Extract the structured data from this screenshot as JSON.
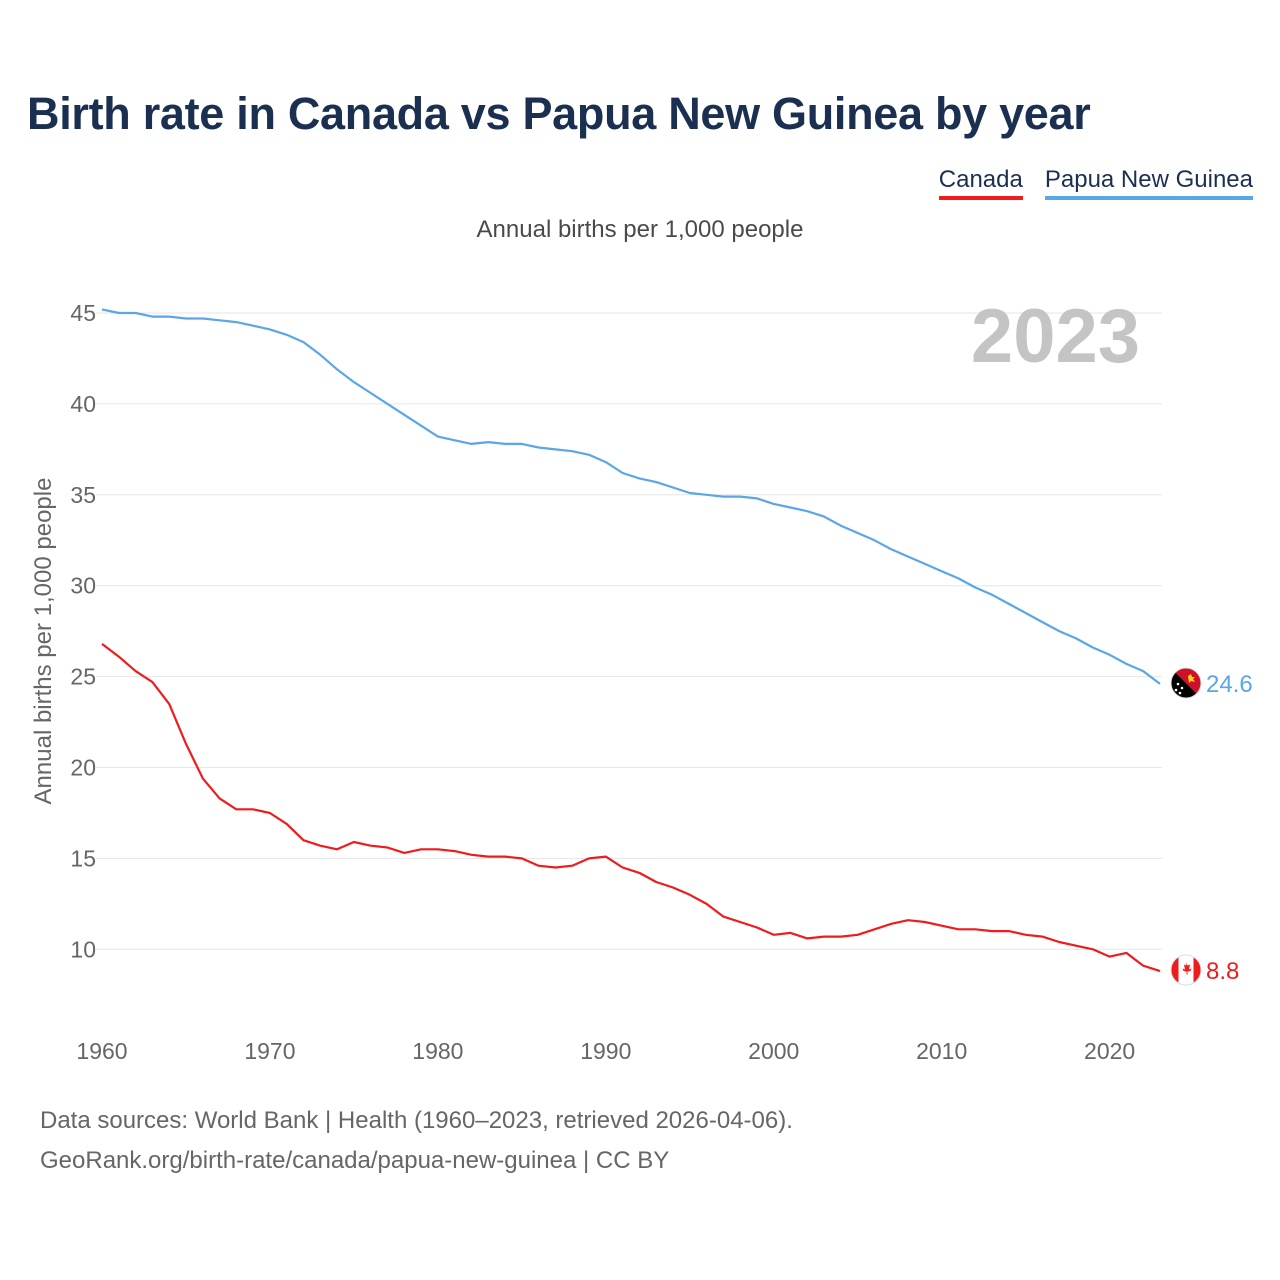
{
  "title": "Birth rate in Canada vs Papua New Guinea by year",
  "subtitle": "Annual births per 1,000 people",
  "legend": [
    {
      "label": "Canada",
      "color": "#ee1c1c"
    },
    {
      "label": "Papua New Guinea",
      "color": "#5aa6e6"
    }
  ],
  "year_watermark": "2023",
  "source_line1": "Data sources: World Bank | Health (1960–2023, retrieved 2026-04-06).",
  "source_line2": "GeoRank.org/birth-rate/canada/papua-new-guinea | CC BY",
  "chart_data": {
    "type": "line",
    "title": "Birth rate in Canada vs Papua New Guinea by year",
    "xlabel": "",
    "ylabel": "Annual births per 1,000 people",
    "xlim": [
      1960,
      2023
    ],
    "ylim": [
      5.6,
      46.8
    ],
    "grid": true,
    "x_ticks": [
      1960,
      1970,
      1980,
      1990,
      2000,
      2010,
      2020
    ],
    "y_ticks": [
      10,
      15,
      20,
      25,
      30,
      35,
      40,
      45
    ],
    "x": [
      1960,
      1961,
      1962,
      1963,
      1964,
      1965,
      1966,
      1967,
      1968,
      1969,
      1970,
      1971,
      1972,
      1973,
      1974,
      1975,
      1976,
      1977,
      1978,
      1979,
      1980,
      1981,
      1982,
      1983,
      1984,
      1985,
      1986,
      1987,
      1988,
      1989,
      1990,
      1991,
      1992,
      1993,
      1994,
      1995,
      1996,
      1997,
      1998,
      1999,
      2000,
      2001,
      2002,
      2003,
      2004,
      2005,
      2006,
      2007,
      2008,
      2009,
      2010,
      2011,
      2012,
      2013,
      2014,
      2015,
      2016,
      2017,
      2018,
      2019,
      2020,
      2021,
      2022,
      2023
    ],
    "series": [
      {
        "name": "Canada",
        "color": "#ee1c1c",
        "end_label": "8.8",
        "values": [
          26.8,
          26.1,
          25.3,
          24.7,
          23.5,
          21.3,
          19.4,
          18.3,
          17.7,
          17.7,
          17.5,
          16.9,
          16.0,
          15.7,
          15.5,
          15.9,
          15.7,
          15.6,
          15.3,
          15.5,
          15.5,
          15.4,
          15.2,
          15.1,
          15.1,
          15.0,
          14.6,
          14.5,
          14.6,
          15.0,
          15.1,
          14.5,
          14.2,
          13.7,
          13.4,
          13.0,
          12.5,
          11.8,
          11.5,
          11.2,
          10.8,
          10.9,
          10.6,
          10.7,
          10.7,
          10.8,
          11.1,
          11.4,
          11.6,
          11.5,
          11.3,
          11.1,
          11.1,
          11.0,
          11.0,
          10.8,
          10.7,
          10.4,
          10.2,
          10.0,
          9.6,
          9.8,
          9.1,
          8.8
        ]
      },
      {
        "name": "Papua New Guinea",
        "color": "#5aa6e6",
        "end_label": "24.6",
        "values": [
          45.2,
          45.0,
          45.0,
          44.8,
          44.8,
          44.7,
          44.7,
          44.6,
          44.5,
          44.3,
          44.1,
          43.8,
          43.4,
          42.7,
          41.9,
          41.2,
          40.6,
          40.0,
          39.4,
          38.8,
          38.2,
          38.0,
          37.8,
          37.9,
          37.8,
          37.8,
          37.6,
          37.5,
          37.4,
          37.2,
          36.8,
          36.2,
          35.9,
          35.7,
          35.4,
          35.1,
          35.0,
          34.9,
          34.9,
          34.8,
          34.5,
          34.3,
          34.1,
          33.8,
          33.3,
          32.9,
          32.5,
          32.0,
          31.6,
          31.2,
          30.8,
          30.4,
          29.9,
          29.5,
          29.0,
          28.5,
          28.0,
          27.5,
          27.1,
          26.6,
          26.2,
          25.7,
          25.3,
          24.6
        ]
      }
    ]
  }
}
